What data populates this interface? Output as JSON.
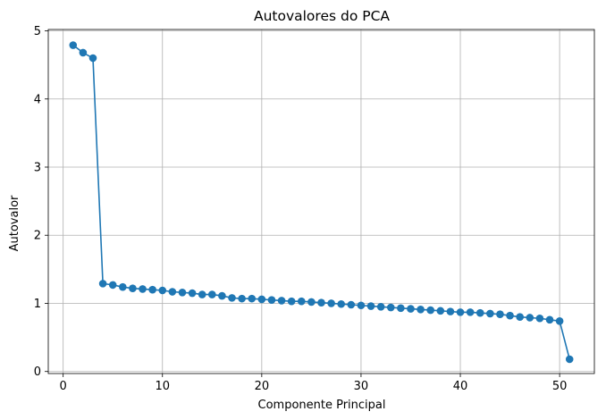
{
  "chart_data": {
    "type": "line",
    "title": "Autovalores do PCA",
    "xlabel": "Componente Principal",
    "ylabel": "Autovalor",
    "xlim": [
      -1.5,
      53.5
    ],
    "ylim": [
      -0.03,
      5.02
    ],
    "xticks": [
      0,
      10,
      20,
      30,
      40,
      50
    ],
    "yticks": [
      0,
      1,
      2,
      3,
      4,
      5
    ],
    "grid": true,
    "marker": "circle",
    "color": "#1f77b4",
    "series": [
      {
        "x": [
          1,
          2,
          3,
          4,
          5,
          6,
          7,
          8,
          9,
          10,
          11,
          12,
          13,
          14,
          15,
          16,
          17,
          18,
          19,
          20,
          21,
          22,
          23,
          24,
          25,
          26,
          27,
          28,
          29,
          30,
          31,
          32,
          33,
          34,
          35,
          36,
          37,
          38,
          39,
          40,
          41,
          42,
          43,
          44,
          45,
          46,
          47,
          48,
          49,
          50,
          51
        ],
        "values": [
          4.79,
          4.68,
          4.6,
          1.29,
          1.27,
          1.24,
          1.22,
          1.21,
          1.2,
          1.19,
          1.17,
          1.16,
          1.15,
          1.13,
          1.13,
          1.11,
          1.08,
          1.07,
          1.07,
          1.06,
          1.05,
          1.04,
          1.03,
          1.03,
          1.02,
          1.01,
          1.0,
          0.99,
          0.98,
          0.97,
          0.96,
          0.95,
          0.94,
          0.93,
          0.92,
          0.91,
          0.9,
          0.89,
          0.88,
          0.87,
          0.87,
          0.86,
          0.85,
          0.84,
          0.82,
          0.8,
          0.79,
          0.78,
          0.76,
          0.74,
          0.18
        ]
      }
    ]
  }
}
